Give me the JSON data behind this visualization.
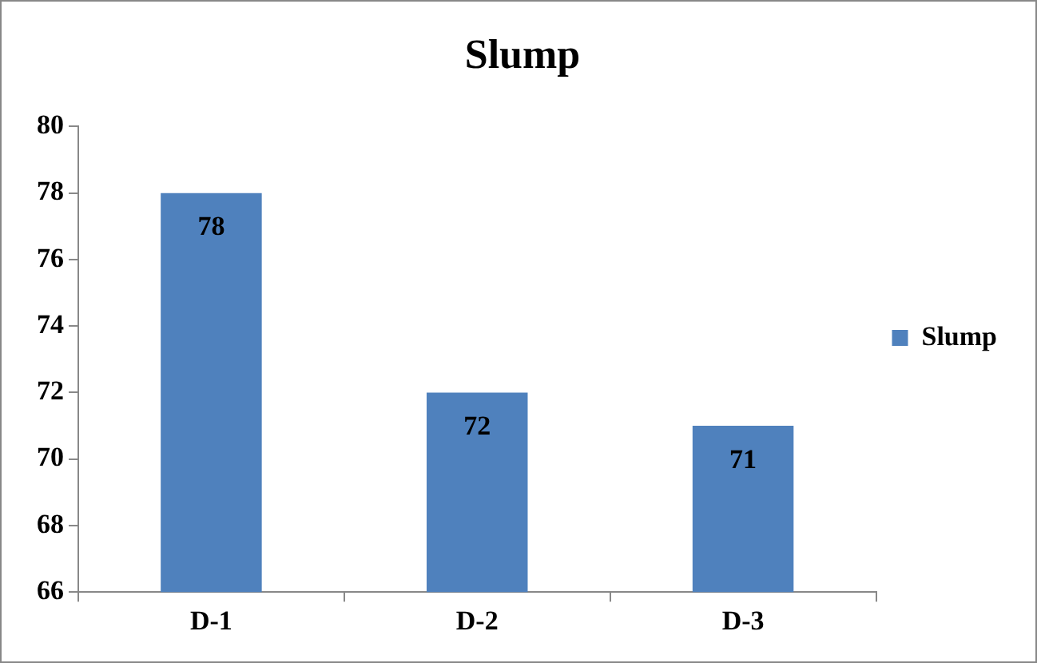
{
  "chart_data": {
    "type": "bar",
    "title": "Slump",
    "categories": [
      "D-1",
      "D-2",
      "D-3"
    ],
    "series": [
      {
        "name": "Slump",
        "color": "#4f81bd",
        "values": [
          78,
          72,
          71
        ]
      }
    ],
    "ylim": [
      66,
      80
    ],
    "yticks": [
      66,
      68,
      70,
      72,
      74,
      76,
      78,
      80
    ],
    "grid": false,
    "legend": "right",
    "data_labels": true
  }
}
